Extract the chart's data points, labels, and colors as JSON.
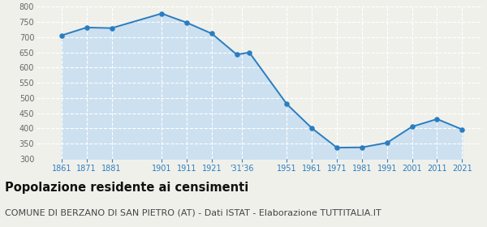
{
  "years": [
    1861,
    1871,
    1881,
    1901,
    1911,
    1921,
    1931,
    1936,
    1951,
    1961,
    1971,
    1981,
    1991,
    2001,
    2011,
    2021
  ],
  "population": [
    706,
    732,
    730,
    778,
    748,
    712,
    643,
    650,
    480,
    401,
    337,
    338,
    353,
    406,
    431,
    397
  ],
  "line_color": "#2a7dc0",
  "fill_color": "#cce0f0",
  "marker_color": "#2a7dc0",
  "background_color": "#f0f0eb",
  "plot_bg_color": "#f0f0eb",
  "grid_color": "#ffffff",
  "grid_style": "--",
  "ylim": [
    300,
    800
  ],
  "yticks": [
    300,
    350,
    400,
    450,
    500,
    550,
    600,
    650,
    700,
    750,
    800
  ],
  "x_tick_positions": [
    1861,
    1871,
    1881,
    1901,
    1911,
    1921,
    1933,
    1951,
    1961,
    1971,
    1981,
    1991,
    2001,
    2011,
    2021
  ],
  "x_tick_labels": [
    "1861",
    "1871",
    "1881",
    "1901",
    "1911",
    "1921",
    "'31'36",
    "1951",
    "1961",
    "1971",
    "1981",
    "1991",
    "2001",
    "2011",
    "2021"
  ],
  "tick_color": "#2a7dc0",
  "ytick_color": "#666666",
  "title": "Popolazione residente ai censimenti",
  "subtitle": "COMUNE DI BERZANO DI SAN PIETRO (AT) - Dati ISTAT - Elaborazione TUTTITALIA.IT",
  "title_fontsize": 10.5,
  "subtitle_fontsize": 8.0,
  "xlim": [
    1851,
    2029
  ]
}
